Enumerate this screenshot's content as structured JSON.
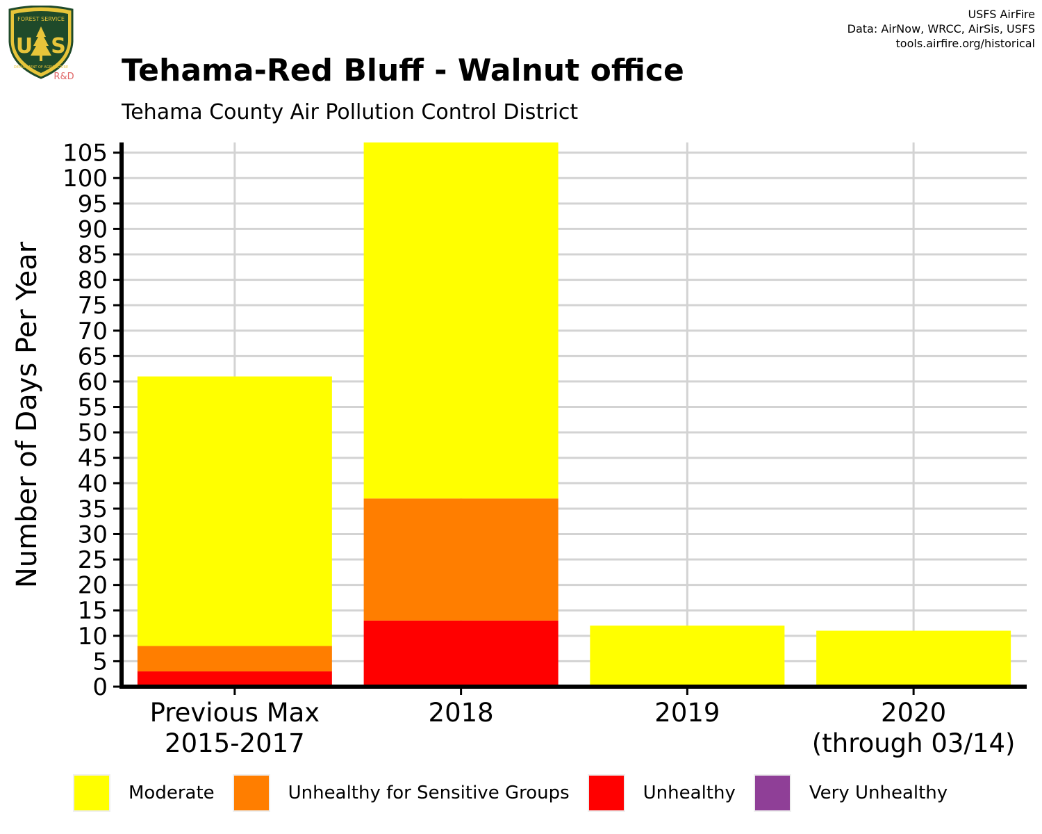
{
  "header": {
    "logo_text_top": "FOREST SERVICE",
    "logo_letters": "U S",
    "logo_text_bottom": "DEPARTMENT OF AGRICULTURE",
    "logo_tag": "R&D",
    "credits": [
      "USFS AirFire",
      "Data: AirNow, WRCC, AirSis, USFS",
      "tools.airfire.org/historical"
    ]
  },
  "colors": {
    "moderate": "#FFFF00",
    "usg": "#FF7E00",
    "unhealthy": "#FF0000",
    "very_unhealthy": "#8F3F97",
    "grid": "#D3D3D3",
    "axis": "#000000",
    "logo_green": "#1F4A2A",
    "logo_gold": "#E8C53A",
    "logo_tag": "#E06666"
  },
  "chart_data": {
    "type": "bar",
    "stacked": true,
    "title": "Tehama-Red Bluff - Walnut office",
    "subtitle": "Tehama County Air Pollution Control District",
    "ylabel": "Number of Days Per Year",
    "xlabel": "",
    "ylim": [
      0,
      107
    ],
    "yticks": [
      0,
      5,
      10,
      15,
      20,
      25,
      30,
      35,
      40,
      45,
      50,
      55,
      60,
      65,
      70,
      75,
      80,
      85,
      90,
      95,
      100,
      105
    ],
    "grid": true,
    "legend_position": "bottom",
    "categories": [
      [
        "Previous Max",
        "2015-2017"
      ],
      [
        "2018"
      ],
      [
        "2019"
      ],
      [
        "2020",
        "(through 03/14)"
      ]
    ],
    "series": [
      {
        "name": "Unhealthy",
        "color": "#FF0000",
        "values": [
          3,
          13,
          0,
          0
        ]
      },
      {
        "name": "Unhealthy for Sensitive Groups",
        "color": "#FF7E00",
        "values": [
          5,
          24,
          0,
          0
        ]
      },
      {
        "name": "Moderate",
        "color": "#FFFF00",
        "values": [
          53,
          70,
          12,
          11
        ]
      },
      {
        "name": "Very Unhealthy",
        "color": "#8F3F97",
        "values": [
          0,
          0,
          0,
          0
        ]
      }
    ],
    "legend": [
      {
        "name": "Moderate",
        "color": "#FFFF00"
      },
      {
        "name": "Unhealthy for Sensitive Groups",
        "color": "#FF7E00"
      },
      {
        "name": "Unhealthy",
        "color": "#FF0000"
      },
      {
        "name": "Very Unhealthy",
        "color": "#8F3F97"
      }
    ]
  }
}
